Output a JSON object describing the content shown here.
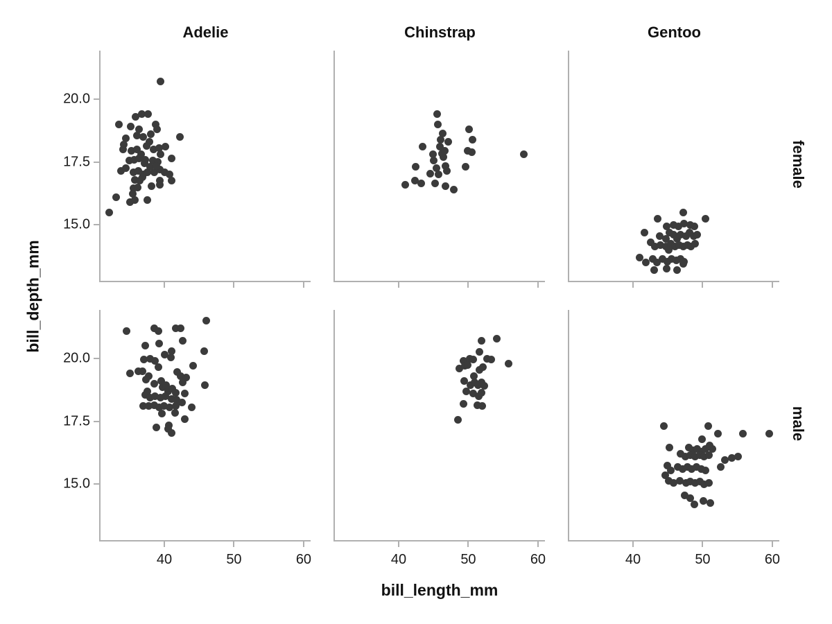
{
  "chart_data": {
    "type": "scatter",
    "title": "",
    "xlabel": "bill_length_mm",
    "ylabel": "bill_depth_mm",
    "col_facets": [
      "Adelie",
      "Chinstrap",
      "Gentoo"
    ],
    "row_facets": [
      "female",
      "male"
    ],
    "xlim": [
      30.85,
      61.0
    ],
    "ylim": [
      12.78,
      21.93
    ],
    "x_ticks": [
      {
        "v": 40,
        "label": "40"
      },
      {
        "v": 50,
        "label": "50"
      },
      {
        "v": 60,
        "label": "60"
      }
    ],
    "y_ticks": [
      {
        "v": 20.0,
        "label": "20.0"
      },
      {
        "v": 17.5,
        "label": "17.5"
      },
      {
        "v": 15.0,
        "label": "15.0"
      }
    ],
    "grid": false,
    "legend": "none",
    "point_color": "#3b3b3b",
    "axis_color": "#b0b0b0",
    "panels": [
      {
        "species": "Adelie",
        "sex": "female",
        "points": [
          [
            39.5,
            20.7
          ],
          [
            33.5,
            19.0
          ],
          [
            35.2,
            18.9
          ],
          [
            35.9,
            19.3
          ],
          [
            36.8,
            19.4
          ],
          [
            37.7,
            19.4
          ],
          [
            36.4,
            18.8
          ],
          [
            38.8,
            19.0
          ],
          [
            39.0,
            18.8
          ],
          [
            34.5,
            18.45
          ],
          [
            36.1,
            18.55
          ],
          [
            37.0,
            18.5
          ],
          [
            37.9,
            18.3
          ],
          [
            42.2,
            18.5
          ],
          [
            34.2,
            18.2
          ],
          [
            34.1,
            18.0
          ],
          [
            35.3,
            17.95
          ],
          [
            36.1,
            18.0
          ],
          [
            38.5,
            18.0
          ],
          [
            39.3,
            18.05
          ],
          [
            40.2,
            18.1
          ],
          [
            39.5,
            17.8
          ],
          [
            41.0,
            17.65
          ],
          [
            35.0,
            17.55
          ],
          [
            35.7,
            17.6
          ],
          [
            36.4,
            17.65
          ],
          [
            37.3,
            17.6
          ],
          [
            38.4,
            17.55
          ],
          [
            39.1,
            17.5
          ],
          [
            33.8,
            17.15
          ],
          [
            34.5,
            17.25
          ],
          [
            35.6,
            17.1
          ],
          [
            36.3,
            17.15
          ],
          [
            37.0,
            17.0
          ],
          [
            37.6,
            17.1
          ],
          [
            38.6,
            17.1
          ],
          [
            39.4,
            17.2
          ],
          [
            40.1,
            17.1
          ],
          [
            40.8,
            17.0
          ],
          [
            35.8,
            16.8
          ],
          [
            36.5,
            16.75
          ],
          [
            39.4,
            16.75
          ],
          [
            41.0,
            16.75
          ],
          [
            35.6,
            16.45
          ],
          [
            36.2,
            16.5
          ],
          [
            38.2,
            16.55
          ],
          [
            39.4,
            16.6
          ],
          [
            33.1,
            16.1
          ],
          [
            35.5,
            16.25
          ],
          [
            35.8,
            16.0
          ],
          [
            35.1,
            15.9
          ],
          [
            37.6,
            16.0
          ],
          [
            32.1,
            15.5
          ],
          [
            36.7,
            17.8
          ],
          [
            37.2,
            17.45
          ],
          [
            38.0,
            17.3
          ],
          [
            36.9,
            16.9
          ],
          [
            38.9,
            17.35
          ],
          [
            37.5,
            18.15
          ],
          [
            38.1,
            18.6
          ]
        ]
      },
      {
        "species": "Adelie",
        "sex": "male",
        "points": [
          [
            34.6,
            21.1
          ],
          [
            38.6,
            21.2
          ],
          [
            39.2,
            21.1
          ],
          [
            41.6,
            21.2
          ],
          [
            42.3,
            21.2
          ],
          [
            46.0,
            21.5
          ],
          [
            37.3,
            20.5
          ],
          [
            39.3,
            20.6
          ],
          [
            42.6,
            20.7
          ],
          [
            41.0,
            20.3
          ],
          [
            45.7,
            20.3
          ],
          [
            37.1,
            19.95
          ],
          [
            38.0,
            20.0
          ],
          [
            38.7,
            19.9
          ],
          [
            40.1,
            20.15
          ],
          [
            40.9,
            20.05
          ],
          [
            39.2,
            19.65
          ],
          [
            44.1,
            19.7
          ],
          [
            35.1,
            19.4
          ],
          [
            36.3,
            19.5
          ],
          [
            36.9,
            19.5
          ],
          [
            37.8,
            19.3
          ],
          [
            37.4,
            19.15
          ],
          [
            38.6,
            19.0
          ],
          [
            41.8,
            19.45
          ],
          [
            42.3,
            19.3
          ],
          [
            43.1,
            19.25
          ],
          [
            45.8,
            18.95
          ],
          [
            37.6,
            18.7
          ],
          [
            39.6,
            19.1
          ],
          [
            39.8,
            18.85
          ],
          [
            40.3,
            18.95
          ],
          [
            40.6,
            18.7
          ],
          [
            41.1,
            18.8
          ],
          [
            41.6,
            18.65
          ],
          [
            42.6,
            19.05
          ],
          [
            42.9,
            18.6
          ],
          [
            37.3,
            18.55
          ],
          [
            38.0,
            18.45
          ],
          [
            38.7,
            18.5
          ],
          [
            39.5,
            18.45
          ],
          [
            40.2,
            18.5
          ],
          [
            41.0,
            18.4
          ],
          [
            41.7,
            18.35
          ],
          [
            37.0,
            18.1
          ],
          [
            37.8,
            18.1
          ],
          [
            38.6,
            18.15
          ],
          [
            39.3,
            18.05
          ],
          [
            40.0,
            18.1
          ],
          [
            40.8,
            18.05
          ],
          [
            41.6,
            18.1
          ],
          [
            42.5,
            18.25
          ],
          [
            43.9,
            18.05
          ],
          [
            39.7,
            17.8
          ],
          [
            41.5,
            17.85
          ],
          [
            42.9,
            17.6
          ],
          [
            38.9,
            17.25
          ],
          [
            40.7,
            17.35
          ],
          [
            41.0,
            17.05
          ],
          [
            40.6,
            17.2
          ]
        ]
      },
      {
        "species": "Chinstrap",
        "sex": "female",
        "points": [
          [
            45.5,
            19.4
          ],
          [
            45.6,
            19.0
          ],
          [
            46.3,
            18.65
          ],
          [
            43.4,
            18.1
          ],
          [
            47.1,
            18.3
          ],
          [
            50.1,
            18.8
          ],
          [
            50.6,
            18.4
          ],
          [
            44.9,
            17.8
          ],
          [
            45.9,
            18.1
          ],
          [
            46.2,
            17.85
          ],
          [
            46.4,
            17.7
          ],
          [
            46.6,
            17.95
          ],
          [
            49.9,
            17.95
          ],
          [
            50.5,
            17.9
          ],
          [
            58.0,
            17.8
          ],
          [
            42.4,
            17.3
          ],
          [
            45.4,
            17.25
          ],
          [
            45.7,
            17.0
          ],
          [
            46.7,
            17.35
          ],
          [
            49.6,
            17.3
          ],
          [
            40.9,
            16.6
          ],
          [
            42.3,
            16.75
          ],
          [
            43.2,
            16.65
          ],
          [
            45.2,
            16.65
          ],
          [
            46.7,
            16.55
          ],
          [
            47.9,
            16.4
          ],
          [
            45.0,
            17.55
          ],
          [
            46.0,
            18.4
          ],
          [
            46.9,
            17.15
          ],
          [
            44.5,
            17.05
          ]
        ]
      },
      {
        "species": "Chinstrap",
        "sex": "male",
        "points": [
          [
            51.9,
            20.7
          ],
          [
            54.1,
            20.8
          ],
          [
            51.6,
            20.25
          ],
          [
            49.3,
            19.9
          ],
          [
            50.2,
            20.0
          ],
          [
            50.7,
            19.95
          ],
          [
            52.7,
            20.0
          ],
          [
            53.3,
            19.95
          ],
          [
            55.8,
            19.8
          ],
          [
            48.7,
            19.6
          ],
          [
            49.5,
            19.7
          ],
          [
            49.9,
            19.75
          ],
          [
            51.6,
            19.55
          ],
          [
            52.1,
            19.65
          ],
          [
            49.4,
            19.1
          ],
          [
            50.3,
            18.95
          ],
          [
            50.9,
            19.05
          ],
          [
            51.4,
            18.95
          ],
          [
            51.9,
            19.05
          ],
          [
            52.3,
            18.9
          ],
          [
            49.7,
            18.7
          ],
          [
            50.7,
            18.6
          ],
          [
            51.5,
            18.5
          ],
          [
            51.9,
            18.65
          ],
          [
            49.3,
            18.2
          ],
          [
            51.3,
            18.15
          ],
          [
            52.0,
            18.1
          ],
          [
            48.5,
            17.55
          ],
          [
            50.8,
            19.3
          ]
        ]
      },
      {
        "species": "Gentoo",
        "sex": "female",
        "points": [
          [
            47.2,
            15.5
          ],
          [
            50.4,
            15.25
          ],
          [
            43.5,
            15.25
          ],
          [
            41.6,
            14.7
          ],
          [
            44.8,
            14.95
          ],
          [
            45.8,
            15.0
          ],
          [
            46.5,
            14.95
          ],
          [
            47.3,
            15.05
          ],
          [
            48.2,
            15.0
          ],
          [
            48.8,
            14.95
          ],
          [
            43.8,
            14.55
          ],
          [
            44.7,
            14.45
          ],
          [
            45.2,
            14.7
          ],
          [
            45.8,
            14.6
          ],
          [
            46.3,
            14.45
          ],
          [
            46.8,
            14.6
          ],
          [
            47.6,
            14.55
          ],
          [
            48.1,
            14.7
          ],
          [
            48.7,
            14.55
          ],
          [
            49.2,
            14.6
          ],
          [
            42.5,
            14.3
          ],
          [
            43.1,
            14.15
          ],
          [
            43.9,
            14.2
          ],
          [
            44.7,
            14.15
          ],
          [
            45.4,
            14.25
          ],
          [
            46.0,
            14.15
          ],
          [
            46.6,
            14.2
          ],
          [
            47.2,
            14.15
          ],
          [
            47.8,
            14.2
          ],
          [
            48.3,
            14.15
          ],
          [
            48.9,
            14.25
          ],
          [
            40.9,
            13.7
          ],
          [
            41.8,
            13.5
          ],
          [
            42.8,
            13.65
          ],
          [
            43.4,
            13.5
          ],
          [
            44.2,
            13.65
          ],
          [
            44.9,
            13.55
          ],
          [
            45.5,
            13.65
          ],
          [
            46.2,
            13.6
          ],
          [
            46.8,
            13.65
          ],
          [
            47.3,
            13.55
          ],
          [
            43.0,
            13.2
          ],
          [
            44.8,
            13.25
          ],
          [
            46.3,
            13.2
          ],
          [
            47.2,
            13.45
          ],
          [
            45.1,
            14.0
          ]
        ]
      },
      {
        "species": "Gentoo",
        "sex": "male",
        "points": [
          [
            44.4,
            17.3
          ],
          [
            50.8,
            17.3
          ],
          [
            52.2,
            17.0
          ],
          [
            55.8,
            17.0
          ],
          [
            59.6,
            17.0
          ],
          [
            49.9,
            16.8
          ],
          [
            45.2,
            16.45
          ],
          [
            48.0,
            16.45
          ],
          [
            48.6,
            16.35
          ],
          [
            49.2,
            16.4
          ],
          [
            49.8,
            16.3
          ],
          [
            50.4,
            16.4
          ],
          [
            51.0,
            16.55
          ],
          [
            51.4,
            16.4
          ],
          [
            46.8,
            16.2
          ],
          [
            47.5,
            16.1
          ],
          [
            48.2,
            16.15
          ],
          [
            48.9,
            16.1
          ],
          [
            49.6,
            16.15
          ],
          [
            50.2,
            16.1
          ],
          [
            50.9,
            16.15
          ],
          [
            53.2,
            15.95
          ],
          [
            54.2,
            16.05
          ],
          [
            55.1,
            16.1
          ],
          [
            44.9,
            15.75
          ],
          [
            45.4,
            15.55
          ],
          [
            46.4,
            15.7
          ],
          [
            47.1,
            15.6
          ],
          [
            47.8,
            15.7
          ],
          [
            48.4,
            15.6
          ],
          [
            49.1,
            15.7
          ],
          [
            49.8,
            15.6
          ],
          [
            50.4,
            15.55
          ],
          [
            52.6,
            15.7
          ],
          [
            44.6,
            15.35
          ],
          [
            45.1,
            15.15
          ],
          [
            45.8,
            15.05
          ],
          [
            46.7,
            15.15
          ],
          [
            47.6,
            15.05
          ],
          [
            48.2,
            15.1
          ],
          [
            48.9,
            15.05
          ],
          [
            49.6,
            15.1
          ],
          [
            50.2,
            15.0
          ],
          [
            50.9,
            15.05
          ],
          [
            47.4,
            14.55
          ],
          [
            48.2,
            14.45
          ],
          [
            48.8,
            14.2
          ],
          [
            50.1,
            14.35
          ],
          [
            51.1,
            14.25
          ]
        ]
      }
    ]
  }
}
